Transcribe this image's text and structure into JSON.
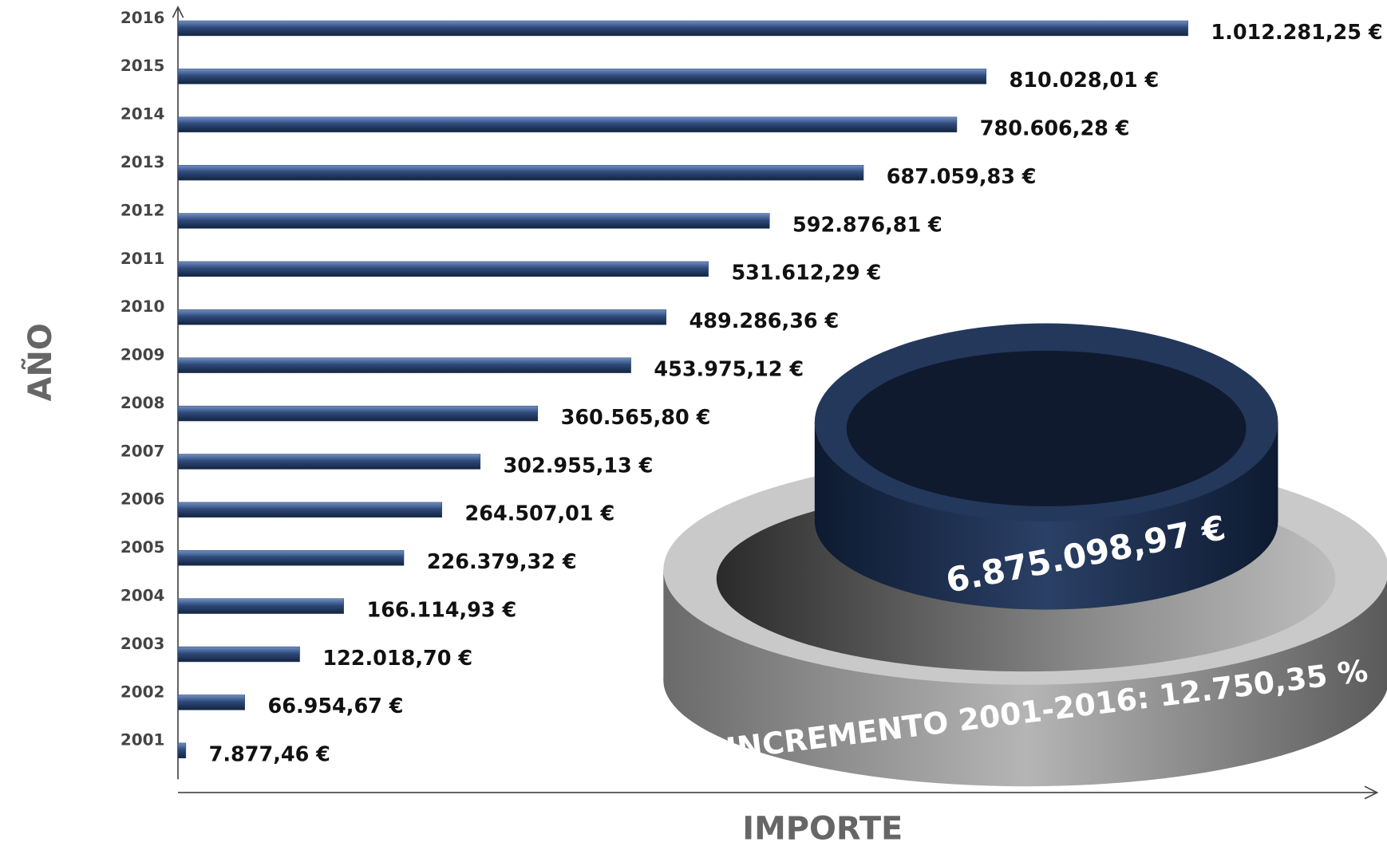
{
  "chart_data": {
    "type": "barh",
    "x_label": "IMPORTE",
    "y_label": "AÑO",
    "categories": [
      "2016",
      "2015",
      "2014",
      "2013",
      "2012",
      "2011",
      "2010",
      "2009",
      "2008",
      "2007",
      "2006",
      "2005",
      "2004",
      "2003",
      "2002",
      "2001"
    ],
    "values": [
      1012281.25,
      810028.01,
      780606.28,
      687059.83,
      592876.81,
      531612.29,
      489286.36,
      453975.12,
      360565.8,
      302955.13,
      264507.01,
      226379.32,
      166114.93,
      122018.7,
      66954.67,
      7877.46
    ],
    "value_labels": [
      "1.012.281,25 €",
      "810.028,01 €",
      "780.606,28 €",
      "687.059,83 €",
      "592.876,81 €",
      "531.612,29 €",
      "489.286,36 €",
      "453.975,12 €",
      "360.565,80 €",
      "302.955,13 €",
      "264.507,01 €",
      "226.379,32 €",
      "166.114,93 €",
      "122.018,70 €",
      "66.954,67 €",
      "7.877,46 €"
    ],
    "color": "#2e4a7a",
    "xlim": [
      0,
      1200000
    ],
    "annotations": [
      "6.875.098,97 €",
      "INCREMENTO 2001-2016: 12.750,35 %"
    ]
  }
}
